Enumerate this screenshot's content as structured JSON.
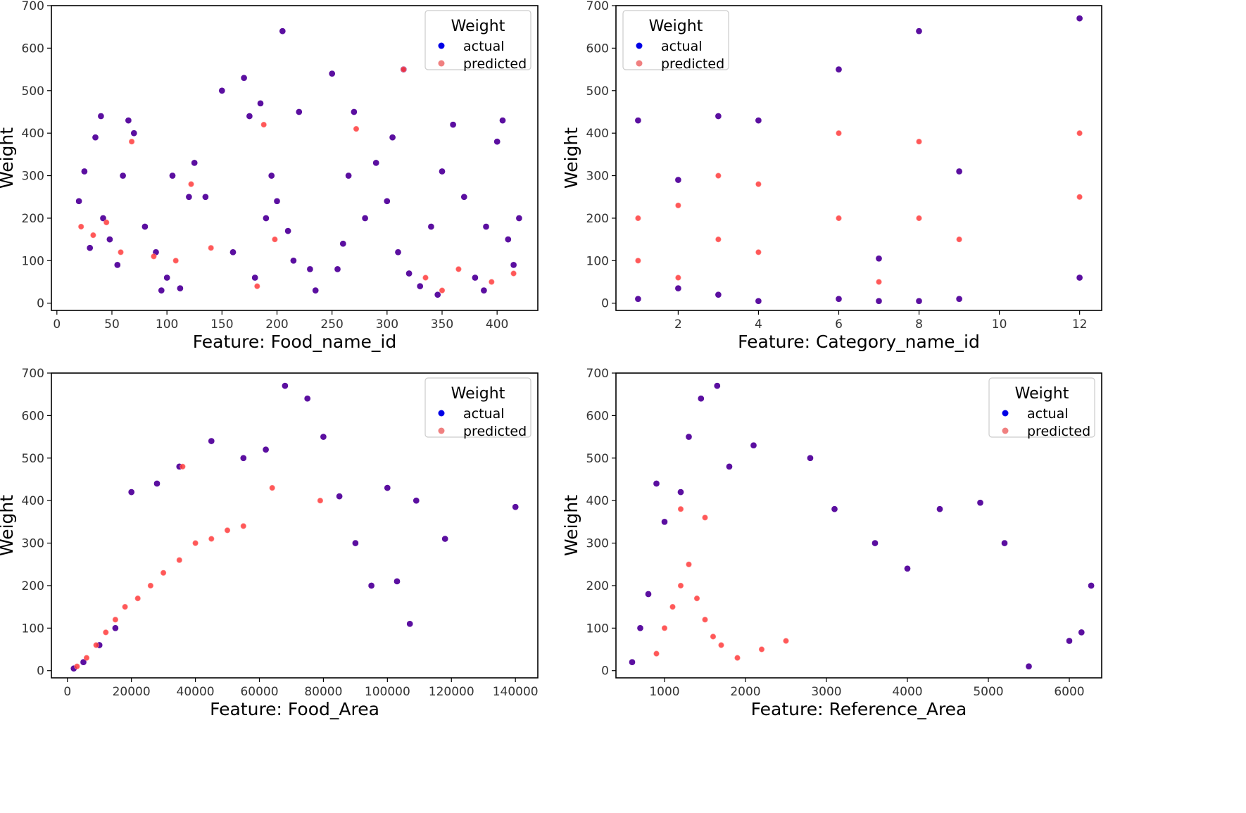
{
  "colors": {
    "actual": "#5b0fa0",
    "actual_legend": "#0000e6",
    "predicted": "#ff3b3b",
    "predicted_legend": "#f08080",
    "predicted_edge": "#ff8a8a",
    "axes": "#000000",
    "background": "#ffffff"
  },
  "chart_data": [
    {
      "id": "food-name-id",
      "type": "scatter",
      "xlabel": "Feature: Food_name_id",
      "ylabel": "Weight",
      "xlim": [
        -5,
        437
      ],
      "ylim": [
        -17,
        700
      ],
      "xticks": [
        0,
        50,
        100,
        150,
        200,
        250,
        300,
        350,
        400
      ],
      "xtick_labels": [
        "0",
        "50",
        "100",
        "150",
        "200",
        "250",
        "300",
        "350",
        "400"
      ],
      "yticks": [
        0,
        100,
        200,
        300,
        400,
        500,
        600,
        700
      ],
      "ytick_labels": [
        "0",
        "100",
        "200",
        "300",
        "400",
        "500",
        "600",
        "700"
      ],
      "legend": {
        "title": "Weight",
        "entries": [
          "actual",
          "predicted"
        ],
        "placement": "top-right"
      },
      "series": [
        {
          "name": "actual",
          "points": [
            [
              20,
              240
            ],
            [
              25,
              310
            ],
            [
              30,
              130
            ],
            [
              35,
              390
            ],
            [
              40,
              440
            ],
            [
              42,
              200
            ],
            [
              48,
              150
            ],
            [
              55,
              90
            ],
            [
              60,
              300
            ],
            [
              65,
              430
            ],
            [
              70,
              400
            ],
            [
              80,
              180
            ],
            [
              90,
              120
            ],
            [
              95,
              30
            ],
            [
              100,
              60
            ],
            [
              105,
              300
            ],
            [
              112,
              35
            ],
            [
              120,
              250
            ],
            [
              125,
              330
            ],
            [
              135,
              250
            ],
            [
              150,
              500
            ],
            [
              160,
              120
            ],
            [
              170,
              530
            ],
            [
              175,
              440
            ],
            [
              180,
              60
            ],
            [
              185,
              470
            ],
            [
              190,
              200
            ],
            [
              195,
              300
            ],
            [
              200,
              240
            ],
            [
              205,
              640
            ],
            [
              210,
              170
            ],
            [
              215,
              100
            ],
            [
              220,
              450
            ],
            [
              230,
              80
            ],
            [
              235,
              30
            ],
            [
              250,
              540
            ],
            [
              255,
              80
            ],
            [
              260,
              140
            ],
            [
              265,
              300
            ],
            [
              270,
              450
            ],
            [
              280,
              200
            ],
            [
              290,
              330
            ],
            [
              300,
              240
            ],
            [
              305,
              390
            ],
            [
              310,
              120
            ],
            [
              315,
              550
            ],
            [
              320,
              70
            ],
            [
              330,
              40
            ],
            [
              340,
              180
            ],
            [
              350,
              310
            ],
            [
              360,
              420
            ],
            [
              370,
              250
            ],
            [
              380,
              60
            ],
            [
              390,
              180
            ],
            [
              400,
              380
            ],
            [
              405,
              430
            ],
            [
              410,
              150
            ],
            [
              415,
              90
            ],
            [
              420,
              200
            ],
            [
              346,
              20
            ],
            [
              388,
              30
            ]
          ]
        },
        {
          "name": "predicted",
          "points": [
            [
              22,
              180
            ],
            [
              33,
              160
            ],
            [
              45,
              190
            ],
            [
              58,
              120
            ],
            [
              68,
              380
            ],
            [
              88,
              110
            ],
            [
              108,
              100
            ],
            [
              122,
              280
            ],
            [
              140,
              130
            ],
            [
              182,
              40
            ],
            [
              188,
              420
            ],
            [
              198,
              150
            ],
            [
              272,
              410
            ],
            [
              315,
              550
            ],
            [
              335,
              60
            ],
            [
              350,
              30
            ],
            [
              365,
              80
            ],
            [
              395,
              50
            ],
            [
              415,
              70
            ]
          ]
        }
      ]
    },
    {
      "id": "category-name-id",
      "type": "scatter",
      "xlabel": "Feature: Category_name_id",
      "ylabel": "Weight",
      "xlim": [
        0.45,
        12.55
      ],
      "ylim": [
        -17,
        700
      ],
      "xticks": [
        2,
        4,
        6,
        8,
        10,
        12
      ],
      "xtick_labels": [
        "2",
        "4",
        "6",
        "8",
        "10",
        "12"
      ],
      "yticks": [
        0,
        100,
        200,
        300,
        400,
        500,
        600,
        700
      ],
      "ytick_labels": [
        "0",
        "100",
        "200",
        "300",
        "400",
        "500",
        "600",
        "700"
      ],
      "legend": {
        "title": "Weight",
        "entries": [
          "actual",
          "predicted"
        ],
        "placement": "top-left"
      },
      "series": [
        {
          "name": "actual",
          "points": [
            [
              1,
              10
            ],
            [
              1,
              430
            ],
            [
              2,
              35
            ],
            [
              2,
              290
            ],
            [
              3,
              20
            ],
            [
              3,
              440
            ],
            [
              4,
              5
            ],
            [
              4,
              430
            ],
            [
              6,
              10
            ],
            [
              6,
              550
            ],
            [
              7,
              5
            ],
            [
              7,
              105
            ],
            [
              8,
              5
            ],
            [
              8,
              640
            ],
            [
              9,
              10
            ],
            [
              9,
              310
            ],
            [
              12,
              60
            ],
            [
              12,
              670
            ]
          ]
        },
        {
          "name": "predicted",
          "points": [
            [
              1,
              100
            ],
            [
              1,
              200
            ],
            [
              2,
              60
            ],
            [
              2,
              230
            ],
            [
              3,
              150
            ],
            [
              3,
              300
            ],
            [
              4,
              120
            ],
            [
              4,
              280
            ],
            [
              6,
              200
            ],
            [
              6,
              400
            ],
            [
              7,
              50
            ],
            [
              8,
              200
            ],
            [
              8,
              380
            ],
            [
              9,
              150
            ],
            [
              12,
              250
            ],
            [
              12,
              400
            ]
          ]
        }
      ]
    },
    {
      "id": "food-area",
      "type": "scatter",
      "xlabel": "Feature: Food_Area",
      "ylabel": "Weight",
      "xlim": [
        -5000,
        147000
      ],
      "ylim": [
        -17,
        700
      ],
      "xticks": [
        0,
        20000,
        40000,
        60000,
        80000,
        100000,
        120000,
        140000
      ],
      "xtick_labels": [
        "0",
        "20000",
        "40000",
        "60000",
        "80000",
        "100000",
        "120000",
        "140000"
      ],
      "yticks": [
        0,
        100,
        200,
        300,
        400,
        500,
        600,
        700
      ],
      "ytick_labels": [
        "0",
        "100",
        "200",
        "300",
        "400",
        "500",
        "600",
        "700"
      ],
      "legend": {
        "title": "Weight",
        "entries": [
          "actual",
          "predicted"
        ],
        "placement": "top-right"
      },
      "series": [
        {
          "name": "actual",
          "points": [
            [
              2000,
              5
            ],
            [
              5000,
              20
            ],
            [
              10000,
              60
            ],
            [
              15000,
              100
            ],
            [
              20000,
              420
            ],
            [
              28000,
              440
            ],
            [
              35000,
              480
            ],
            [
              45000,
              540
            ],
            [
              55000,
              500
            ],
            [
              62000,
              520
            ],
            [
              68000,
              670
            ],
            [
              75000,
              640
            ],
            [
              80000,
              550
            ],
            [
              85000,
              410
            ],
            [
              90000,
              300
            ],
            [
              95000,
              200
            ],
            [
              100000,
              430
            ],
            [
              103000,
              210
            ],
            [
              107000,
              110
            ],
            [
              109000,
              400
            ],
            [
              118000,
              310
            ],
            [
              140000,
              385
            ]
          ]
        },
        {
          "name": "predicted",
          "points": [
            [
              3000,
              10
            ],
            [
              6000,
              30
            ],
            [
              9000,
              60
            ],
            [
              12000,
              90
            ],
            [
              15000,
              120
            ],
            [
              18000,
              150
            ],
            [
              22000,
              170
            ],
            [
              26000,
              200
            ],
            [
              30000,
              230
            ],
            [
              35000,
              260
            ],
            [
              40000,
              300
            ],
            [
              45000,
              310
            ],
            [
              50000,
              330
            ],
            [
              55000,
              340
            ],
            [
              36000,
              480
            ],
            [
              64000,
              430
            ],
            [
              79000,
              400
            ]
          ]
        }
      ]
    },
    {
      "id": "reference-area",
      "type": "scatter",
      "xlabel": "Feature: Reference_Area",
      "ylabel": "Weight",
      "xlim": [
        400,
        6400
      ],
      "ylim": [
        -17,
        700
      ],
      "xticks": [
        1000,
        2000,
        3000,
        4000,
        5000,
        6000
      ],
      "xtick_labels": [
        "1000",
        "2000",
        "3000",
        "4000",
        "5000",
        "6000"
      ],
      "yticks": [
        0,
        100,
        200,
        300,
        400,
        500,
        600,
        700
      ],
      "ytick_labels": [
        "0",
        "100",
        "200",
        "300",
        "400",
        "500",
        "600",
        "700"
      ],
      "legend": {
        "title": "Weight",
        "entries": [
          "actual",
          "predicted"
        ],
        "placement": "top-right"
      },
      "series": [
        {
          "name": "actual",
          "points": [
            [
              600,
              20
            ],
            [
              700,
              100
            ],
            [
              800,
              180
            ],
            [
              900,
              440
            ],
            [
              1000,
              350
            ],
            [
              1200,
              420
            ],
            [
              1300,
              550
            ],
            [
              1450,
              640
            ],
            [
              1650,
              670
            ],
            [
              1800,
              480
            ],
            [
              2100,
              530
            ],
            [
              2800,
              500
            ],
            [
              3100,
              380
            ],
            [
              3600,
              300
            ],
            [
              4000,
              240
            ],
            [
              4400,
              380
            ],
            [
              4900,
              395
            ],
            [
              5200,
              300
            ],
            [
              5500,
              10
            ],
            [
              6000,
              70
            ],
            [
              6270,
              200
            ],
            [
              6150,
              90
            ]
          ]
        },
        {
          "name": "predicted",
          "points": [
            [
              900,
              40
            ],
            [
              1000,
              100
            ],
            [
              1100,
              150
            ],
            [
              1200,
              200
            ],
            [
              1300,
              250
            ],
            [
              1400,
              170
            ],
            [
              1500,
              120
            ],
            [
              1600,
              80
            ],
            [
              1700,
              60
            ],
            [
              1200,
              380
            ],
            [
              1500,
              360
            ],
            [
              1900,
              30
            ],
            [
              2200,
              50
            ],
            [
              2500,
              70
            ]
          ]
        }
      ]
    }
  ]
}
